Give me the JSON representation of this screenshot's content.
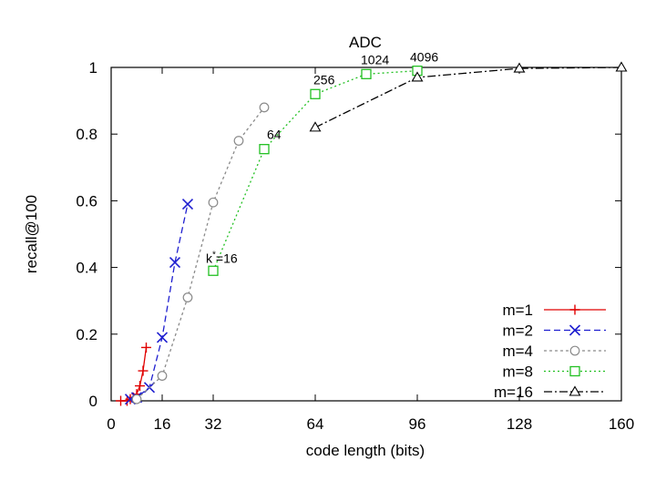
{
  "chart_data": {
    "type": "line",
    "title": "ADC",
    "xlabel": "code length (bits)",
    "ylabel": "recall@100",
    "xlim": [
      0,
      160
    ],
    "ylim": [
      0,
      1
    ],
    "xticks": [
      0,
      16,
      32,
      64,
      96,
      128,
      160
    ],
    "yticks": [
      0,
      0.2,
      0.4,
      0.6,
      0.8,
      1
    ],
    "ytick_labels": [
      "0",
      "0.2",
      "0.4",
      "0.6",
      "0.8",
      "1"
    ],
    "grid": false,
    "legend_position": "bottom-right",
    "series": [
      {
        "name": "m=1",
        "color": "#e00000",
        "dash": "solid",
        "marker": "plus",
        "x": [
          3,
          5,
          6,
          7,
          8,
          9,
          10,
          11
        ],
        "y": [
          0.0,
          0.0,
          0.005,
          0.01,
          0.02,
          0.045,
          0.09,
          0.16
        ]
      },
      {
        "name": "m=2",
        "color": "#1f1fd0",
        "dash": "dashed",
        "marker": "x",
        "x": [
          6,
          8,
          12,
          16,
          20,
          24
        ],
        "y": [
          0.005,
          0.01,
          0.04,
          0.19,
          0.415,
          0.59
        ]
      },
      {
        "name": "m=4",
        "color": "#8a8a8a",
        "dash": "dotted-gray",
        "marker": "circle",
        "x": [
          8,
          16,
          24,
          32,
          40,
          48
        ],
        "y": [
          0.005,
          0.075,
          0.31,
          0.595,
          0.78,
          0.88
        ]
      },
      {
        "name": "m=8",
        "color": "#22c022",
        "dash": "dotted",
        "marker": "square",
        "x": [
          32,
          48,
          64,
          80,
          96
        ],
        "y": [
          0.39,
          0.755,
          0.92,
          0.98,
          0.99
        ]
      },
      {
        "name": "m=16",
        "color": "#000000",
        "dash": "dashdot",
        "marker": "triangle",
        "x": [
          64,
          96,
          128,
          160
        ],
        "y": [
          0.82,
          0.97,
          0.997,
          1.0
        ]
      }
    ],
    "annotations": [
      {
        "text": "k",
        "sup": "*",
        "text_after": "=16",
        "x": 32,
        "y": 0.39
      },
      {
        "text": "64",
        "x": 48,
        "y": 0.755
      },
      {
        "text": "256",
        "x": 64,
        "y": 0.92
      },
      {
        "text": "1024",
        "x": 80,
        "y": 0.98
      },
      {
        "text": "4096",
        "x": 96,
        "y": 0.99
      }
    ]
  }
}
